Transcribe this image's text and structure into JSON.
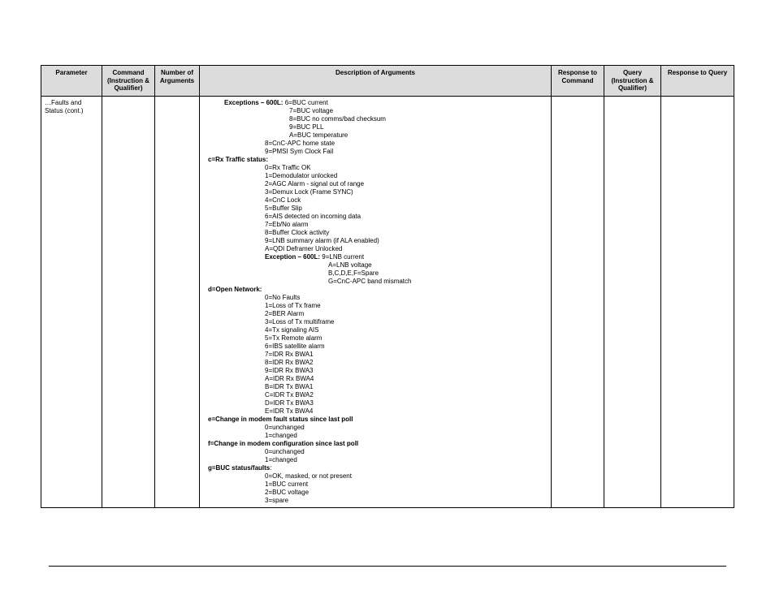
{
  "columns": {
    "parameter": "Parameter",
    "command": "Command (Instruction & Qualifier)",
    "numArgs": "Number of Arguments",
    "desc": "Description of Arguments",
    "respCmd": "Response to Command",
    "query": "Query (Instruction & Qualifier)",
    "respQuery": "Response to Query"
  },
  "row": {
    "parameter": "…Faults and Status (cont.)",
    "command": "",
    "numArgs": "",
    "respCmd": "",
    "query": "",
    "respQuery": ""
  },
  "desc": {
    "excHeader": "Exceptions – 600L:",
    "excLines": [
      "6=BUC current",
      "7=BUC voltage",
      "8=BUC no comms/bad checksum",
      "9=BUC PLL",
      "A=BUC temperature"
    ],
    "afterExc": [
      "8=CnC-APC home state",
      "9=PMSI Sym Clock Fail"
    ],
    "cHeader": "c=Rx Traffic status:",
    "cLines": [
      "0=Rx Traffic OK",
      "1=Demodulator unlocked",
      "2=AGC Alarm - signal out of range",
      "3=Demux Lock (Frame SYNC)",
      "4=CnC Lock",
      "5=Buffer Slip",
      "6=AIS detected on incoming data",
      "7=Eb/No alarm",
      "8=Buffer Clock activity",
      "9=LNB summary alarm  (if ALA enabled)",
      "A=QDI Deframer Unlocked"
    ],
    "exc2Header": "Exception – 600L:",
    "exc2Lines": [
      "9=LNB current",
      "A=LNB voltage",
      "B,C,D,E,F=Spare",
      "G=CnC-APC band mismatch"
    ],
    "dHeader": "d=Open Network:",
    "dLines": [
      "0=No Faults",
      "1=Loss of Tx frame",
      "2=BER Alarm",
      "3=Loss of Tx multiframe",
      "4=Tx signaling AIS",
      "5=Tx Remote alarm",
      "6=IBS satellite alarm",
      "7=IDR Rx BWA1",
      "8=IDR Rx BWA2",
      "9=IDR Rx BWA3",
      "A=IDR Rx BWA4",
      "B=IDR Tx BWA1",
      "C=IDR Tx BWA2",
      "D=IDR Tx BWA3",
      "E=IDR Tx BWA4"
    ],
    "eHeader": "e=Change in modem fault status since last poll",
    "eLines": [
      "0=unchanged",
      "1=changed"
    ],
    "fHeader": "f=Change in modem configuration since last poll",
    "fLines": [
      "0=unchanged",
      "1=changed"
    ],
    "gHeader": "g=BUC status/faults",
    "gColon": ":",
    "gLines": [
      "0=OK, masked, or not present",
      "1=BUC current",
      "2=BUC voltage",
      "3=spare"
    ]
  }
}
